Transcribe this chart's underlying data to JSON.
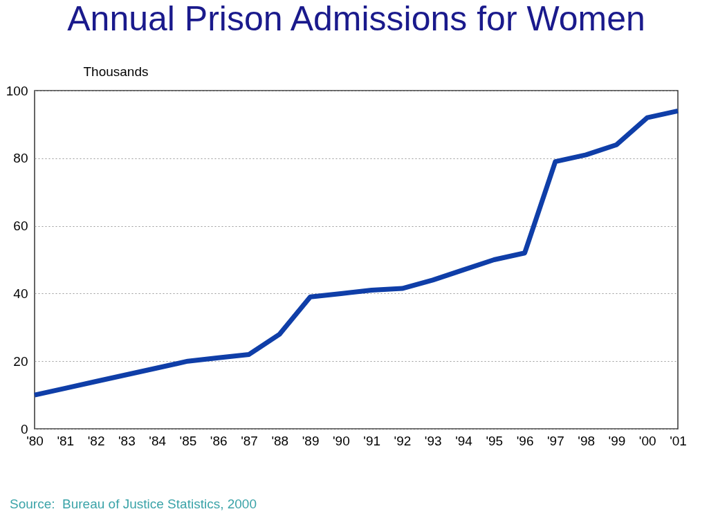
{
  "chart_data": {
    "type": "line",
    "title": "Annual Prison Admissions for Women",
    "ylabel": "Thousands",
    "categories": [
      "'80",
      "'81",
      "'82",
      "'83",
      "'84",
      "'85",
      "'86",
      "'87",
      "'88",
      "'89",
      "'90",
      "'91",
      "'92",
      "'93",
      "'94",
      "'95",
      "'96",
      "'97",
      "'98",
      "'99",
      "'00",
      "'01"
    ],
    "series": [
      {
        "color": "#0f3ea8",
        "values": [
          10,
          12,
          14,
          16,
          18,
          20,
          21,
          22,
          28,
          39,
          40,
          41,
          41.5,
          44,
          47,
          50,
          52,
          79,
          81,
          84,
          92,
          94
        ]
      }
    ],
    "ylim": [
      0,
      100
    ],
    "yticks": [
      0,
      20,
      40,
      60,
      80,
      100
    ],
    "grid": "y",
    "legend": false,
    "marker": "none",
    "line_style": "solid",
    "annotations": [
      "Source:  Bureau of Justice Statistics, 2000"
    ]
  }
}
